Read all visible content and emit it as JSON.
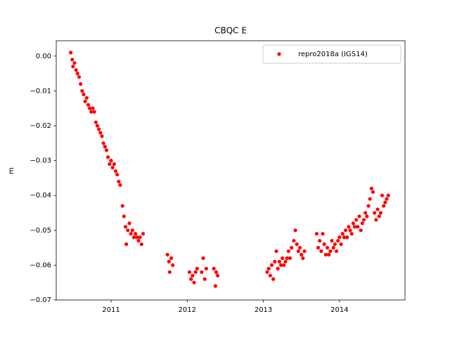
{
  "chart_data": {
    "type": "scatter",
    "title": "CBQC E",
    "y_label": "m",
    "series": [
      {
        "name": "repro2018a (IGS14)",
        "color": "#ff0000",
        "x": [
          2010.47,
          2010.49,
          2010.5,
          2010.52,
          2010.54,
          2010.56,
          2010.58,
          2010.6,
          2010.62,
          2010.64,
          2010.66,
          2010.68,
          2010.7,
          2010.72,
          2010.74,
          2010.76,
          2010.78,
          2010.8,
          2010.82,
          2010.84,
          2010.86,
          2010.88,
          2010.9,
          2010.92,
          2010.94,
          2010.96,
          2010.98,
          2011.0,
          2011.02,
          2011.04,
          2011.06,
          2011.08,
          2011.1,
          2011.12,
          2011.15,
          2011.17,
          2011.19,
          2011.2,
          2011.22,
          2011.24,
          2011.26,
          2011.28,
          2011.3,
          2011.32,
          2011.34,
          2011.36,
          2011.38,
          2011.4,
          2011.42,
          2011.74,
          2011.76,
          2011.77,
          2011.79,
          2011.81,
          2012.03,
          2012.05,
          2012.07,
          2012.09,
          2012.11,
          2012.13,
          2012.19,
          2012.21,
          2012.23,
          2012.25,
          2012.35,
          2012.37,
          2012.38,
          2012.4,
          2013.05,
          2013.07,
          2013.09,
          2013.11,
          2013.13,
          2013.15,
          2013.17,
          2013.19,
          2013.21,
          2013.23,
          2013.25,
          2013.27,
          2013.29,
          2013.31,
          2013.33,
          2013.35,
          2013.37,
          2013.4,
          2013.42,
          2013.44,
          2013.46,
          2013.48,
          2013.5,
          2013.52,
          2013.54,
          2013.7,
          2013.72,
          2013.74,
          2013.76,
          2013.78,
          2013.8,
          2013.82,
          2013.84,
          2013.86,
          2013.88,
          2013.9,
          2013.92,
          2013.94,
          2013.96,
          2013.98,
          2014.0,
          2014.02,
          2014.04,
          2014.06,
          2014.08,
          2014.1,
          2014.12,
          2014.14,
          2014.16,
          2014.18,
          2014.2,
          2014.22,
          2014.24,
          2014.26,
          2014.28,
          2014.3,
          2014.32,
          2014.34,
          2014.36,
          2014.38,
          2014.4,
          2014.42,
          2014.44,
          2014.46,
          2014.48,
          2014.5,
          2014.52,
          2014.54,
          2014.56,
          2014.58,
          2014.6,
          2014.62,
          2014.64
        ],
        "values": [
          0.001,
          -0.001,
          -0.003,
          -0.002,
          -0.004,
          -0.005,
          -0.006,
          -0.008,
          -0.01,
          -0.011,
          -0.013,
          -0.012,
          -0.014,
          -0.015,
          -0.016,
          -0.015,
          -0.016,
          -0.019,
          -0.02,
          -0.021,
          -0.022,
          -0.023,
          -0.025,
          -0.026,
          -0.027,
          -0.029,
          -0.031,
          -0.03,
          -0.032,
          -0.031,
          -0.033,
          -0.034,
          -0.036,
          -0.037,
          -0.043,
          -0.046,
          -0.049,
          -0.054,
          -0.05,
          -0.048,
          -0.051,
          -0.05,
          -0.052,
          -0.051,
          -0.052,
          -0.053,
          -0.052,
          -0.054,
          -0.051,
          -0.057,
          -0.059,
          -0.062,
          -0.058,
          -0.06,
          -0.062,
          -0.064,
          -0.063,
          -0.065,
          -0.062,
          -0.061,
          -0.062,
          -0.058,
          -0.064,
          -0.061,
          -0.061,
          -0.066,
          -0.062,
          -0.063,
          -0.062,
          -0.061,
          -0.063,
          -0.06,
          -0.064,
          -0.059,
          -0.056,
          -0.061,
          -0.059,
          -0.06,
          -0.058,
          -0.06,
          -0.059,
          -0.058,
          -0.056,
          -0.058,
          -0.055,
          -0.053,
          -0.05,
          -0.054,
          -0.056,
          -0.055,
          -0.057,
          -0.058,
          -0.056,
          -0.051,
          -0.055,
          -0.053,
          -0.056,
          -0.051,
          -0.054,
          -0.057,
          -0.055,
          -0.057,
          -0.056,
          -0.053,
          -0.055,
          -0.054,
          -0.056,
          -0.053,
          -0.052,
          -0.054,
          -0.051,
          -0.052,
          -0.05,
          -0.052,
          -0.049,
          -0.05,
          -0.051,
          -0.048,
          -0.049,
          -0.047,
          -0.049,
          -0.046,
          -0.05,
          -0.048,
          -0.047,
          -0.045,
          -0.046,
          -0.043,
          -0.041,
          -0.038,
          -0.039,
          -0.045,
          -0.047,
          -0.044,
          -0.046,
          -0.045,
          -0.04,
          -0.043,
          -0.042,
          -0.041,
          -0.04
        ]
      }
    ],
    "xlim": [
      2010.28,
      2014.86
    ],
    "xticks": [
      2011,
      2012,
      2013,
      2014
    ],
    "ylim": [
      -0.07,
      0.0044
    ],
    "yticks": [
      {
        "value": 0,
        "label": "0.00"
      },
      {
        "value": -0.01,
        "label": "−0.01"
      },
      {
        "value": -0.02,
        "label": "−0.02"
      },
      {
        "value": -0.03,
        "label": "−0.03"
      },
      {
        "value": -0.04,
        "label": "−0.04"
      },
      {
        "value": -0.05,
        "label": "−0.05"
      },
      {
        "value": -0.06,
        "label": "−0.06"
      },
      {
        "value": -0.07,
        "label": "−0.07"
      }
    ],
    "legend": "upper right",
    "grid": false
  }
}
